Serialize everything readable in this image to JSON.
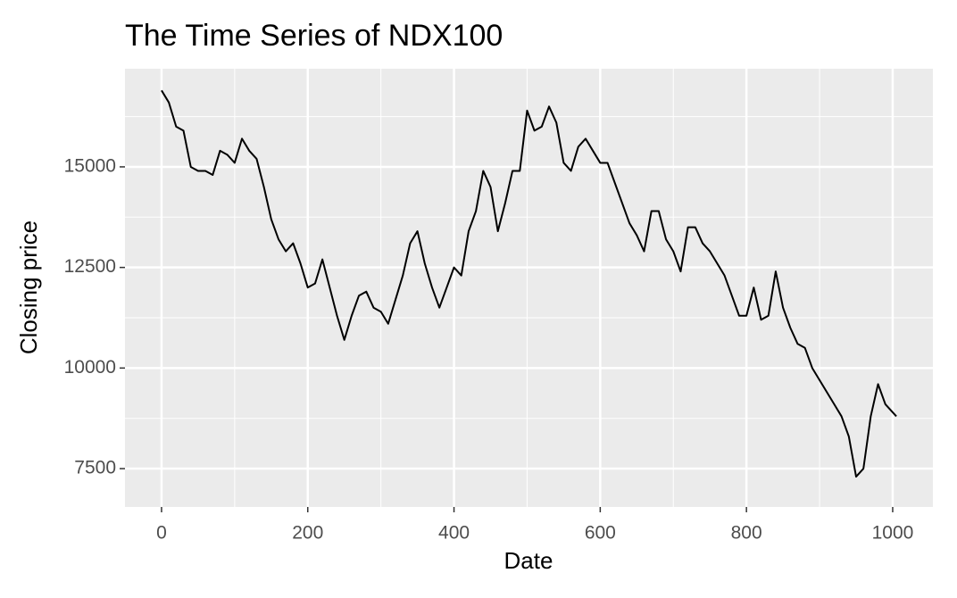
{
  "chart_data": {
    "type": "line",
    "title": "The Time Series of NDX100",
    "x_label": "Date",
    "y_label": "Closing price",
    "x": [
      0,
      10,
      20,
      30,
      40,
      50,
      60,
      70,
      80,
      90,
      100,
      110,
      120,
      130,
      140,
      150,
      160,
      170,
      180,
      190,
      200,
      210,
      220,
      230,
      240,
      250,
      260,
      270,
      280,
      290,
      300,
      310,
      320,
      330,
      340,
      350,
      360,
      370,
      380,
      390,
      400,
      410,
      420,
      430,
      440,
      450,
      460,
      470,
      480,
      490,
      500,
      510,
      520,
      530,
      540,
      550,
      560,
      570,
      580,
      590,
      600,
      610,
      620,
      630,
      640,
      650,
      660,
      670,
      680,
      690,
      700,
      710,
      720,
      730,
      740,
      750,
      760,
      770,
      780,
      790,
      800,
      810,
      820,
      830,
      840,
      850,
      860,
      870,
      880,
      890,
      900,
      910,
      920,
      930,
      940,
      950,
      960,
      970,
      980,
      990,
      1000,
      1005
    ],
    "series": [
      {
        "name": "NDX100",
        "color": "#000000",
        "values": [
          16900,
          16600,
          16000,
          15900,
          15000,
          14900,
          14900,
          14800,
          15400,
          15300,
          15100,
          15700,
          15400,
          15200,
          14500,
          13700,
          13200,
          12900,
          13100,
          12600,
          12000,
          12100,
          12700,
          12000,
          11300,
          10700,
          11300,
          11800,
          11900,
          11500,
          11400,
          11100,
          11700,
          12300,
          13100,
          13400,
          12600,
          12000,
          11500,
          12000,
          12500,
          12300,
          13400,
          13900,
          14900,
          14500,
          13400,
          14100,
          14900,
          14900,
          16400,
          15900,
          16000,
          16500,
          16100,
          15100,
          14900,
          15500,
          15700,
          15400,
          15100,
          15100,
          14600,
          14100,
          13600,
          13300,
          12900,
          13900,
          13900,
          13200,
          12900,
          12400,
          13500,
          13500,
          13100,
          12900,
          12600,
          12300,
          11800,
          11300,
          11300,
          12000,
          11200,
          11300,
          12400,
          11500,
          11000,
          10600,
          10500,
          10000,
          9700,
          9400,
          9100,
          8800,
          8300,
          7300,
          7500,
          8800,
          9600,
          9100,
          8900,
          8800
        ]
      }
    ],
    "xlim": [
      -50,
      1055
    ],
    "ylim": [
      6547,
      17439
    ],
    "xticks": [
      0,
      200,
      400,
      600,
      800,
      1000
    ],
    "yticks": [
      7500,
      10000,
      12500,
      15000
    ],
    "xminor": [
      100,
      300,
      500,
      700,
      900
    ],
    "yminor": [
      8750,
      11250,
      13750,
      16250
    ],
    "grid": true
  }
}
